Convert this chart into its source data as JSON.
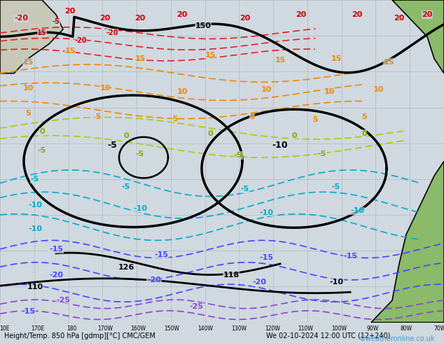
{
  "title_left": "Height/Temp. 850 hPa [gdmp][°C] CMC/GEM",
  "title_right": "We 02-10-2024 12:00 UTC (12+240)",
  "watermark": "©weatheronline.co.uk",
  "bg_color": "#d0d8e0",
  "land_color": "#c8c8c8",
  "ocean_color": "#d0d8e0",
  "grid_color": "#b0b8c0",
  "text_color": "#000000",
  "bottom_label_color": "#000000",
  "watermark_color": "#4499cc",
  "figsize": [
    6.34,
    4.9
  ],
  "dpi": 100
}
